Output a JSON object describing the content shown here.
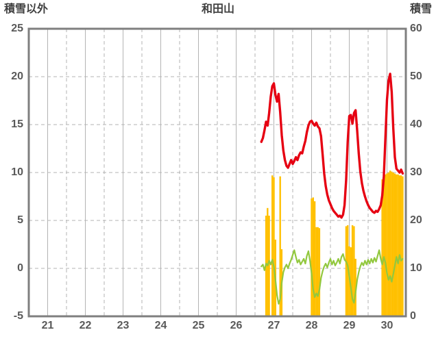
{
  "chart_data": {
    "type": "line",
    "title": "和田山",
    "left_axis": {
      "label": "積雪以外",
      "min": -5,
      "max": 25,
      "ticks": [
        25,
        20,
        15,
        10,
        5,
        0,
        -5
      ]
    },
    "right_axis": {
      "label": "積雪",
      "min": 0,
      "max": 60,
      "ticks": [
        60,
        50,
        40,
        30,
        20,
        10,
        0
      ]
    },
    "x_axis": {
      "labels": [
        "21",
        "22",
        "23",
        "24",
        "25",
        "26",
        "27",
        "28",
        "29",
        "30"
      ],
      "range": [
        21,
        31
      ]
    },
    "grid": {
      "color": "#b3b3b3",
      "border_color": "#7f7f7f",
      "background": "#ffffff"
    },
    "series": [
      {
        "name": "orange_bars",
        "kind": "bar",
        "axis": "right",
        "color": "#ffc000",
        "bar_width": 2.4,
        "points": [
          [
            27.292,
            21.0
          ],
          [
            27.333,
            22.6
          ],
          [
            27.375,
            21.0
          ],
          [
            27.458,
            29.4
          ],
          [
            27.5,
            29.0
          ],
          [
            27.542,
            16.0
          ],
          [
            27.667,
            29.2
          ],
          [
            27.708,
            14.0
          ],
          [
            28.5,
            24.6
          ],
          [
            28.542,
            24.8
          ],
          [
            28.583,
            24.0
          ],
          [
            28.625,
            18.6
          ],
          [
            28.667,
            18.6
          ],
          [
            28.708,
            18.4
          ],
          [
            29.417,
            18.8
          ],
          [
            29.458,
            19.0
          ],
          [
            29.5,
            14.6
          ],
          [
            29.542,
            14.4
          ],
          [
            29.583,
            19.0
          ],
          [
            29.625,
            18.8
          ],
          [
            29.667,
            12.0
          ],
          [
            30.375,
            28.6
          ],
          [
            30.417,
            29.2
          ],
          [
            30.458,
            29.6
          ],
          [
            30.5,
            29.8
          ],
          [
            30.542,
            30.0
          ],
          [
            30.583,
            30.4
          ],
          [
            30.625,
            30.2
          ],
          [
            30.667,
            30.0
          ],
          [
            30.708,
            29.8
          ],
          [
            30.75,
            29.6
          ],
          [
            30.792,
            29.6
          ],
          [
            30.833,
            29.4
          ],
          [
            30.875,
            29.4
          ],
          [
            30.917,
            29.2
          ]
        ]
      },
      {
        "name": "green_line",
        "kind": "line",
        "axis": "left",
        "color": "#92c83e",
        "width": 2.2,
        "x_start": 27.167,
        "x_step": 0.0416667,
        "values": [
          0.2,
          0.4,
          -0.2,
          0.5,
          0.3,
          0.8,
          0.4,
          0.9,
          0.2,
          -1.2,
          -2.8,
          -3.7,
          -3.2,
          -1.5,
          -0.4,
          0.1,
          0.4,
          0.0,
          0.5,
          0.9,
          1.4,
          1.9,
          1.2,
          0.6,
          0.9,
          0.4,
          0.7,
          1.0,
          0.5,
          1.3,
          1.8,
          0.8,
          -0.5,
          -2.2,
          -3.0,
          -2.6,
          -2.9,
          -2.2,
          -1.0,
          -0.3,
          0.2,
          0.5,
          0.1,
          0.6,
          1.0,
          0.4,
          0.8,
          0.3,
          0.6,
          1.0,
          0.5,
          1.2,
          1.5,
          0.9,
          0.7,
          0.3,
          -0.8,
          -2.0,
          -3.2,
          -3.6,
          -2.5,
          -1.2,
          -0.4,
          0.2,
          0.6,
          0.3,
          0.8,
          0.4,
          0.9,
          0.5,
          1.0,
          0.6,
          1.1,
          0.7,
          1.3,
          1.9,
          1.0,
          0.4,
          1.2,
          0.6,
          -0.5,
          -1.2,
          -0.8,
          -1.4,
          -0.6,
          0.3,
          1.2,
          0.5,
          1.4,
          0.8,
          1.0
        ]
      },
      {
        "name": "red_line",
        "kind": "line",
        "axis": "left",
        "color": "#e60012",
        "width": 3.4,
        "x_start": 27.167,
        "x_step": 0.0416667,
        "values": [
          13.2,
          13.6,
          14.4,
          15.3,
          14.9,
          16.2,
          17.9,
          19.0,
          19.3,
          18.1,
          17.4,
          18.2,
          16.3,
          13.9,
          12.3,
          11.3,
          10.7,
          10.5,
          10.9,
          11.3,
          10.9,
          11.2,
          11.6,
          11.3,
          11.8,
          12.1,
          12.0,
          12.7,
          13.3,
          14.2,
          14.9,
          15.3,
          15.4,
          15.1,
          14.9,
          15.2,
          14.8,
          14.6,
          13.8,
          11.9,
          9.9,
          8.6,
          7.7,
          7.1,
          6.7,
          6.3,
          6.0,
          5.8,
          5.6,
          5.4,
          5.5,
          5.3,
          5.6,
          6.6,
          9.2,
          13.2,
          15.9,
          16.0,
          15.1,
          16.2,
          16.5,
          14.4,
          12.0,
          10.1,
          8.9,
          8.1,
          7.5,
          7.0,
          6.6,
          6.3,
          6.1,
          5.9,
          5.8,
          6.0,
          5.9,
          6.2,
          6.6,
          7.6,
          9.6,
          13.6,
          17.6,
          19.6,
          20.3,
          18.4,
          14.6,
          11.6,
          10.4,
          10.2,
          10.0,
          10.3,
          9.9
        ]
      }
    ]
  }
}
